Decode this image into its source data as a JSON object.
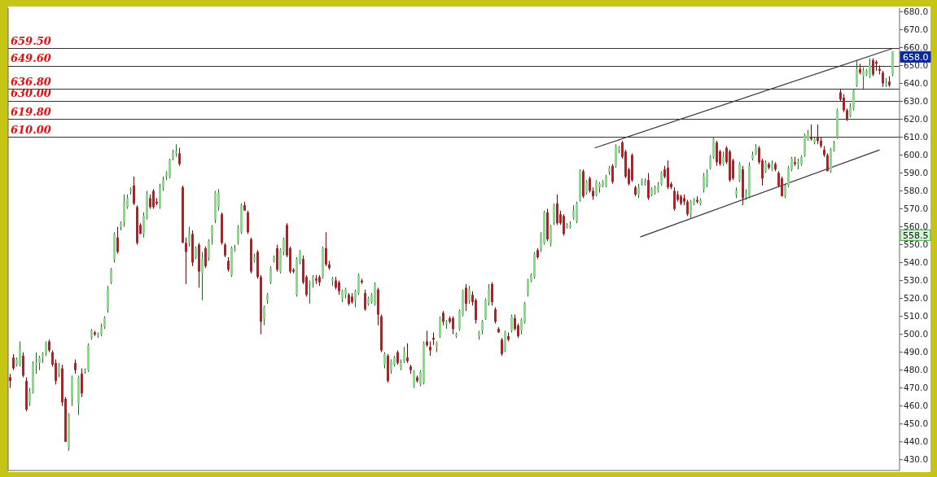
{
  "chart_data": {
    "type": "candlestick",
    "categories": [
      null,
      null,
      null,
      null,
      null,
      null,
      null,
      null,
      null,
      null,
      null,
      null,
      null,
      null,
      null,
      null,
      null,
      null,
      null,
      null,
      null,
      null,
      null,
      null,
      null,
      null,
      null,
      null,
      null,
      null,
      null,
      null,
      null,
      null,
      null,
      null,
      null,
      null,
      null,
      null,
      null,
      null,
      null,
      null,
      null,
      null,
      null,
      null,
      null,
      null,
      null,
      null,
      null,
      null,
      null,
      null,
      null,
      null,
      null,
      null,
      null,
      null,
      null,
      null,
      null,
      null,
      null,
      null,
      null,
      null,
      null,
      null,
      null,
      null,
      null,
      null,
      null,
      null,
      null,
      null,
      null,
      null,
      null,
      null,
      null,
      null,
      null,
      null,
      null,
      null,
      null,
      null,
      null,
      null,
      null,
      null,
      null,
      null,
      null,
      null,
      null,
      null,
      null,
      null,
      null,
      null,
      null,
      null,
      null,
      null,
      null,
      null,
      null,
      null,
      null,
      null,
      null,
      null,
      null,
      null,
      null,
      null,
      null,
      null,
      null,
      null,
      null,
      null,
      null,
      null,
      null,
      null,
      null,
      null,
      null,
      null,
      null,
      null,
      null,
      null,
      null,
      null,
      null,
      null,
      null,
      null,
      null,
      null,
      null,
      null,
      null,
      null,
      null,
      null,
      null,
      null,
      null,
      null,
      null,
      null,
      null,
      null,
      null,
      null,
      null,
      null,
      null,
      null,
      null,
      null,
      null,
      null,
      null,
      null,
      null,
      null,
      null,
      null,
      null,
      null,
      null,
      null,
      null,
      null,
      null,
      null,
      null,
      null,
      null,
      null,
      null,
      null,
      null,
      null,
      null,
      null,
      null,
      null,
      null,
      null,
      null,
      null,
      null,
      null,
      null,
      null,
      null,
      null,
      null,
      null,
      null,
      null,
      null,
      null,
      null,
      null,
      null,
      null,
      null,
      null,
      null,
      null,
      null,
      null,
      null,
      null,
      null,
      null,
      null,
      null,
      null,
      null,
      null,
      null,
      null,
      null,
      null,
      null,
      null,
      null,
      null,
      null,
      null,
      null,
      null,
      null,
      null,
      null,
      null,
      null,
      null,
      null,
      null,
      null,
      null,
      null,
      null,
      null,
      null,
      null,
      null,
      null,
      null,
      null,
      null,
      null,
      null,
      null,
      null,
      null,
      null,
      null
    ],
    "ohlc": [
      [
        476,
        478,
        470,
        474
      ],
      [
        487,
        489,
        480,
        481
      ],
      [
        483,
        487,
        482,
        486
      ],
      [
        483,
        496,
        482,
        492
      ],
      [
        488,
        490,
        476,
        477
      ],
      [
        474,
        476,
        457,
        458
      ],
      [
        462,
        470,
        460,
        468
      ],
      [
        468,
        485,
        467,
        483
      ],
      [
        483,
        490,
        478,
        484
      ],
      [
        484,
        488,
        480,
        487
      ],
      [
        487,
        490,
        484,
        489
      ],
      [
        490,
        496,
        488,
        495
      ],
      [
        496,
        497,
        490,
        491
      ],
      [
        490,
        491,
        482,
        483
      ],
      [
        484,
        486,
        472,
        474
      ],
      [
        478,
        484,
        476,
        482
      ],
      [
        481,
        483,
        460,
        462
      ],
      [
        464,
        465,
        440,
        440
      ],
      [
        437,
        456,
        435,
        455
      ],
      [
        465,
        477,
        460,
        476
      ],
      [
        484,
        486,
        478,
        480
      ],
      [
        461,
        477,
        455,
        476
      ],
      [
        478,
        481,
        465,
        467
      ],
      [
        479,
        481,
        478,
        480
      ],
      [
        480,
        495,
        479,
        494
      ],
      [
        498,
        503,
        497,
        502
      ],
      [
        501,
        502,
        499,
        500
      ],
      [
        499,
        501,
        498,
        500
      ],
      [
        500,
        506,
        499,
        504
      ],
      [
        504,
        510,
        503,
        509
      ],
      [
        514,
        527,
        512,
        525
      ],
      [
        529,
        537,
        528,
        536
      ],
      [
        542,
        557,
        540,
        556
      ],
      [
        554,
        560,
        545,
        546
      ],
      [
        560,
        563,
        558,
        562
      ],
      [
        563,
        578,
        560,
        574
      ],
      [
        571,
        578,
        570,
        576
      ],
      [
        580,
        582,
        578,
        581
      ],
      [
        583,
        588,
        572,
        573
      ],
      [
        571,
        572,
        550,
        551
      ],
      [
        561,
        562,
        556,
        556
      ],
      [
        556,
        568,
        554,
        566
      ],
      [
        565,
        580,
        564,
        578
      ],
      [
        576,
        578,
        570,
        571
      ],
      [
        580,
        581,
        570,
        571
      ],
      [
        574,
        576,
        572,
        573
      ],
      [
        571,
        584,
        570,
        582
      ],
      [
        582,
        588,
        580,
        586
      ],
      [
        588,
        591,
        586,
        590
      ],
      [
        588,
        598,
        587,
        597
      ],
      [
        599,
        603,
        597,
        601
      ],
      [
        601,
        606,
        599,
        602
      ],
      [
        601,
        604,
        594,
        595
      ],
      [
        582,
        583,
        551,
        551
      ],
      [
        551,
        554,
        528,
        546
      ],
      [
        551,
        560,
        549,
        556
      ],
      [
        556,
        558,
        538,
        540
      ],
      [
        543,
        549,
        542,
        548
      ],
      [
        550,
        551,
        526,
        535
      ],
      [
        534,
        546,
        519,
        542
      ],
      [
        548,
        549,
        537,
        538
      ],
      [
        543,
        553,
        541,
        552
      ],
      [
        555,
        561,
        550,
        560
      ],
      [
        564,
        580,
        562,
        579
      ],
      [
        571,
        581,
        569,
        579
      ],
      [
        567,
        568,
        550,
        551
      ],
      [
        550,
        551,
        543,
        544
      ],
      [
        541,
        543,
        535,
        536
      ],
      [
        533,
        549,
        532,
        548
      ],
      [
        547,
        550,
        546,
        548
      ],
      [
        552,
        561,
        550,
        559
      ],
      [
        557,
        573,
        556,
        572
      ],
      [
        572,
        574,
        569,
        569
      ],
      [
        568,
        569,
        556,
        557
      ],
      [
        553,
        554,
        534,
        535
      ],
      [
        541,
        545,
        540,
        543
      ],
      [
        546,
        547,
        531,
        532
      ],
      [
        532,
        533,
        500,
        507
      ],
      [
        509,
        516,
        505,
        515
      ],
      [
        519,
        523,
        517,
        522
      ],
      [
        529,
        538,
        528,
        537
      ],
      [
        541,
        544,
        540,
        543
      ],
      [
        548,
        550,
        535,
        536
      ],
      [
        535,
        548,
        534,
        547
      ],
      [
        546,
        554,
        544,
        553
      ],
      [
        561,
        562,
        543,
        544
      ],
      [
        548,
        549,
        534,
        535
      ],
      [
        536,
        537,
        534,
        535
      ],
      [
        522,
        543,
        521,
        542
      ],
      [
        541,
        547,
        539,
        546
      ],
      [
        542,
        544,
        528,
        529
      ],
      [
        532,
        533,
        521,
        522
      ],
      [
        528,
        530,
        517,
        529
      ],
      [
        530,
        533,
        526,
        532
      ],
      [
        531,
        533,
        528,
        530
      ],
      [
        532,
        533,
        527,
        529
      ],
      [
        532,
        549,
        531,
        548
      ],
      [
        548,
        557,
        538,
        539
      ],
      [
        539,
        541,
        536,
        537
      ],
      [
        530,
        532,
        527,
        531
      ],
      [
        530,
        532,
        525,
        526
      ],
      [
        529,
        530,
        522,
        524
      ],
      [
        520,
        525,
        518,
        524
      ],
      [
        522,
        526,
        520,
        525
      ],
      [
        522,
        523,
        516,
        517
      ],
      [
        521,
        523,
        517,
        518
      ],
      [
        519,
        525,
        515,
        524
      ],
      [
        523,
        534,
        522,
        533
      ],
      [
        530,
        531,
        528,
        529
      ],
      [
        523,
        525,
        513,
        514
      ],
      [
        517,
        521,
        516,
        520
      ],
      [
        518,
        523,
        517,
        522
      ],
      [
        517,
        529,
        516,
        528
      ],
      [
        525,
        526,
        505,
        511
      ],
      [
        510,
        511,
        490,
        491
      ],
      [
        483,
        490,
        481,
        489
      ],
      [
        488,
        489,
        473,
        474
      ],
      [
        480,
        486,
        478,
        485
      ],
      [
        483,
        488,
        482,
        487
      ],
      [
        490,
        491,
        483,
        484
      ],
      [
        481,
        486,
        480,
        484
      ],
      [
        485,
        493,
        484,
        490
      ],
      [
        487,
        495,
        484,
        485
      ],
      [
        482,
        483,
        478,
        480
      ],
      [
        471,
        480,
        470,
        479
      ],
      [
        476,
        477,
        473,
        474
      ],
      [
        472,
        480,
        471,
        479
      ],
      [
        473,
        496,
        472,
        495
      ],
      [
        496,
        502,
        493,
        494
      ],
      [
        493,
        496,
        488,
        491
      ],
      [
        498,
        501,
        494,
        497
      ],
      [
        493,
        496,
        490,
        495
      ],
      [
        499,
        510,
        498,
        509
      ],
      [
        512,
        513,
        505,
        507
      ],
      [
        506,
        508,
        503,
        507
      ],
      [
        509,
        510,
        506,
        507
      ],
      [
        509,
        510,
        500,
        503
      ],
      [
        499,
        501,
        498,
        500
      ],
      [
        503,
        514,
        502,
        513
      ],
      [
        511,
        525,
        510,
        524
      ],
      [
        526,
        528,
        513,
        517
      ],
      [
        519,
        527,
        517,
        525
      ],
      [
        522,
        524,
        516,
        518
      ],
      [
        519,
        520,
        506,
        508
      ],
      [
        499,
        502,
        497,
        501
      ],
      [
        502,
        508,
        500,
        507
      ],
      [
        509,
        520,
        508,
        519
      ],
      [
        518,
        528,
        516,
        525
      ],
      [
        528,
        529,
        516,
        518
      ],
      [
        514,
        515,
        506,
        507
      ],
      [
        503,
        504,
        501,
        501
      ],
      [
        497,
        498,
        488,
        489
      ],
      [
        491,
        502,
        490,
        501
      ],
      [
        499,
        501,
        496,
        497
      ],
      [
        502,
        511,
        501,
        510
      ],
      [
        509,
        511,
        502,
        503
      ],
      [
        505,
        506,
        498,
        499
      ],
      [
        502,
        509,
        500,
        508
      ],
      [
        507,
        518,
        506,
        517
      ],
      [
        523,
        531,
        521,
        530
      ],
      [
        530,
        534,
        529,
        533
      ],
      [
        532,
        546,
        531,
        545
      ],
      [
        547,
        548,
        542,
        543
      ],
      [
        548,
        557,
        546,
        556
      ],
      [
        551,
        569,
        550,
        568
      ],
      [
        568,
        570,
        552,
        553
      ],
      [
        551,
        561,
        549,
        560
      ],
      [
        563,
        573,
        561,
        572
      ],
      [
        573,
        578,
        561,
        562
      ],
      [
        567,
        569,
        561,
        562
      ],
      [
        566,
        567,
        555,
        556
      ],
      [
        560,
        562,
        559,
        561
      ],
      [
        560,
        563,
        559,
        561
      ],
      [
        565,
        572,
        564,
        569
      ],
      [
        563,
        574,
        562,
        573
      ],
      [
        575,
        592,
        574,
        591
      ],
      [
        591,
        592,
        576,
        577
      ],
      [
        579,
        586,
        578,
        585
      ],
      [
        587,
        588,
        579,
        580
      ],
      [
        580,
        582,
        575,
        577
      ],
      [
        578,
        586,
        577,
        585
      ],
      [
        582,
        585,
        579,
        584
      ],
      [
        583,
        586,
        582,
        585
      ],
      [
        583,
        589,
        582,
        588
      ],
      [
        591,
        594,
        589,
        593
      ],
      [
        594,
        595,
        584,
        585
      ],
      [
        594,
        606,
        593,
        605
      ],
      [
        603,
        605,
        601,
        604
      ],
      [
        607,
        608,
        598,
        599
      ],
      [
        602,
        603,
        587,
        588
      ],
      [
        592,
        593,
        583,
        584
      ],
      [
        600,
        601,
        585,
        586
      ],
      [
        582,
        583,
        577,
        578
      ],
      [
        578,
        584,
        576,
        582
      ],
      [
        584,
        587,
        583,
        586
      ],
      [
        584,
        587,
        583,
        585
      ],
      [
        586,
        590,
        575,
        576
      ],
      [
        578,
        582,
        577,
        581
      ],
      [
        579,
        583,
        578,
        582
      ],
      [
        580,
        585,
        579,
        583
      ],
      [
        584,
        591,
        583,
        590
      ],
      [
        592,
        594,
        587,
        588
      ],
      [
        593,
        597,
        581,
        582
      ],
      [
        584,
        585,
        581,
        582
      ],
      [
        580,
        582,
        569,
        570
      ],
      [
        578,
        580,
        574,
        575
      ],
      [
        577,
        578,
        572,
        573
      ],
      [
        576,
        578,
        572,
        574
      ],
      [
        574,
        575,
        566,
        567
      ],
      [
        567,
        575,
        565,
        574
      ],
      [
        573,
        576,
        572,
        575
      ],
      [
        575,
        577,
        573,
        574
      ],
      [
        573,
        576,
        572,
        575
      ],
      [
        581,
        590,
        579,
        588
      ],
      [
        584,
        592,
        582,
        590
      ],
      [
        593,
        600,
        592,
        599
      ],
      [
        599,
        610,
        598,
        609
      ],
      [
        607,
        608,
        594,
        596
      ],
      [
        602,
        603,
        594,
        595
      ],
      [
        595,
        602,
        594,
        599
      ],
      [
        604,
        605,
        595,
        596
      ],
      [
        602,
        603,
        585,
        586
      ],
      [
        597,
        598,
        586,
        587
      ],
      [
        578,
        582,
        576,
        580
      ],
      [
        586,
        596,
        585,
        595
      ],
      [
        592,
        594,
        572,
        576
      ],
      [
        577,
        581,
        575,
        578
      ],
      [
        577,
        596,
        576,
        594
      ],
      [
        598,
        602,
        597,
        600
      ],
      [
        601,
        606,
        600,
        604
      ],
      [
        604,
        605,
        595,
        596
      ],
      [
        597,
        598,
        583,
        587
      ],
      [
        591,
        597,
        590,
        596
      ],
      [
        595,
        596,
        592,
        593
      ],
      [
        592,
        597,
        591,
        595
      ],
      [
        595,
        596,
        591,
        592
      ],
      [
        590,
        591,
        582,
        583
      ],
      [
        587,
        588,
        577,
        577
      ],
      [
        577,
        584,
        576,
        583
      ],
      [
        583,
        594,
        582,
        593
      ],
      [
        592,
        599,
        591,
        598
      ],
      [
        596,
        599,
        594,
        595
      ],
      [
        595,
        598,
        592,
        596
      ],
      [
        595,
        600,
        594,
        599
      ],
      [
        600,
        612,
        599,
        611
      ],
      [
        609,
        614,
        608,
        612
      ],
      [
        610,
        617,
        608,
        609
      ],
      [
        607,
        610,
        606,
        609
      ],
      [
        610,
        617,
        606,
        608
      ],
      [
        608,
        610,
        604,
        605
      ],
      [
        603,
        605,
        599,
        600
      ],
      [
        600,
        601,
        591,
        591
      ],
      [
        591,
        604,
        590,
        603
      ],
      [
        603,
        608,
        602,
        606
      ],
      [
        610,
        626,
        609,
        625
      ],
      [
        635,
        637,
        630,
        631
      ],
      [
        632,
        634,
        624,
        625
      ],
      [
        625,
        626,
        619,
        620
      ],
      [
        622,
        629,
        621,
        627
      ],
      [
        626,
        637,
        625,
        636
      ],
      [
        639,
        653,
        638,
        648
      ],
      [
        648,
        651,
        645,
        646
      ],
      [
        644,
        649,
        637,
        647
      ],
      [
        645,
        648,
        644,
        647
      ],
      [
        644,
        654,
        643,
        650
      ],
      [
        653,
        654,
        644,
        645
      ],
      [
        652,
        653,
        647,
        651
      ],
      [
        648,
        650,
        645,
        647
      ],
      [
        646,
        647,
        638,
        640
      ],
      [
        639,
        643,
        638,
        640
      ],
      [
        641,
        644,
        638,
        639
      ],
      [
        645,
        658,
        644,
        658
      ]
    ],
    "ylim": [
      424,
      682
    ],
    "yticks": [
      {
        "value": 430,
        "label": "430.0"
      },
      {
        "value": 440,
        "label": "440.0"
      },
      {
        "value": 450,
        "label": "450.0"
      },
      {
        "value": 460,
        "label": "460.0"
      },
      {
        "value": 470,
        "label": "470.0"
      },
      {
        "value": 480,
        "label": "480.0"
      },
      {
        "value": 490,
        "label": "490.0"
      },
      {
        "value": 500,
        "label": "500.0"
      },
      {
        "value": 510,
        "label": "510.0"
      },
      {
        "value": 520,
        "label": "520.0"
      },
      {
        "value": 530,
        "label": "530.0"
      },
      {
        "value": 540,
        "label": "540.0"
      },
      {
        "value": 550,
        "label": "550.0"
      },
      {
        "value": 560,
        "label": "560.0"
      },
      {
        "value": 570,
        "label": "570.0"
      },
      {
        "value": 580,
        "label": "580.0"
      },
      {
        "value": 590,
        "label": "590.0"
      },
      {
        "value": 600,
        "label": "600.0"
      },
      {
        "value": 610,
        "label": "610.0"
      },
      {
        "value": 620,
        "label": "620.0"
      },
      {
        "value": 630,
        "label": "630.0"
      },
      {
        "value": 640,
        "label": "640.0"
      },
      {
        "value": 650,
        "label": "650.0"
      },
      {
        "value": 660,
        "label": "660.0"
      },
      {
        "value": 670,
        "label": "670.0"
      },
      {
        "value": 680,
        "label": "680.0"
      }
    ],
    "tick_labels": "y",
    "ref_lines": [
      {
        "axis": "y",
        "value": 659.5,
        "label": "659.50"
      },
      {
        "axis": "y",
        "value": 649.6,
        "label": "649.60"
      },
      {
        "axis": "y",
        "value": 636.8,
        "label": "636.80"
      },
      {
        "axis": "y",
        "value": 630,
        "label": "630.00"
      },
      {
        "axis": "y",
        "value": 619.8,
        "label": "619.80"
      },
      {
        "axis": "y",
        "value": 610,
        "label": "610.00"
      }
    ],
    "annotations": [
      "658.0",
      "558.5"
    ]
  }
}
